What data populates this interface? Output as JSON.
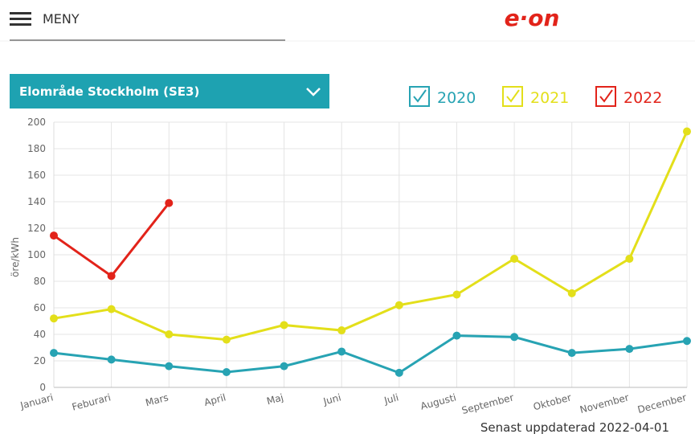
{
  "header": {
    "menu": "MENY",
    "logo": "e·on"
  },
  "dropdown": {
    "label": "Elområde Stockholm (SE3)"
  },
  "updated": "Senast uppdaterad 2022-04-01",
  "chart_data": {
    "type": "line",
    "ylabel": "öre/kWh",
    "categories": [
      "Januari",
      "Feburari",
      "Mars",
      "April",
      "Maj",
      "Juni",
      "Juli",
      "Augusti",
      "September",
      "Oktober",
      "November",
      "December"
    ],
    "series": [
      {
        "name": "2020",
        "color": "#27a3b3",
        "values": [
          26,
          21,
          16,
          11.5,
          16,
          27,
          11,
          39,
          38,
          26,
          29,
          35
        ]
      },
      {
        "name": "2021",
        "color": "#e3df1a",
        "values": [
          52,
          59,
          40,
          36,
          47,
          43,
          62,
          70,
          97,
          71,
          97,
          193
        ]
      },
      {
        "name": "2022",
        "color": "#e2231a",
        "values": [
          114.5,
          84,
          139,
          null,
          null,
          null,
          null,
          null,
          null,
          null,
          null,
          null
        ]
      }
    ],
    "ylim": [
      0,
      200
    ],
    "yticks": [
      0,
      20,
      40,
      60,
      80,
      100,
      120,
      140,
      160,
      180,
      200
    ],
    "grid": true,
    "legend": "top-right"
  }
}
